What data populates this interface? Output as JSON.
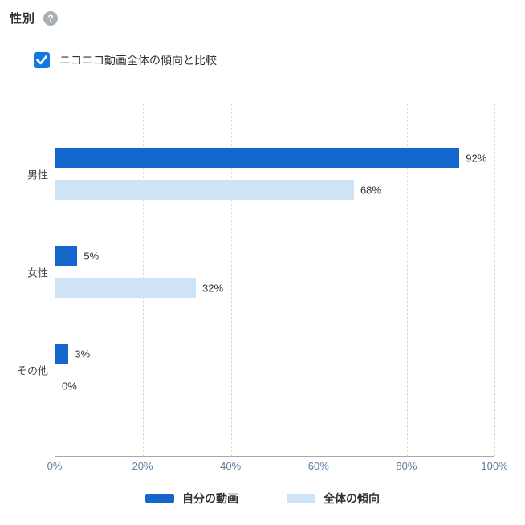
{
  "header": {
    "title": "性別",
    "help_icon_glyph": "?"
  },
  "compare": {
    "label": "ニコニコ動画全体の傾向と比較",
    "checked": true
  },
  "chart_data": {
    "type": "bar",
    "orientation": "horizontal",
    "title": "性別",
    "categories": [
      "男性",
      "女性",
      "その他"
    ],
    "series": [
      {
        "name": "自分の動画",
        "color": "#1266cc",
        "values": [
          92,
          5,
          3
        ]
      },
      {
        "name": "全体の傾向",
        "color": "#cfe3f7",
        "values": [
          68,
          32,
          0
        ]
      }
    ],
    "value_suffix": "%",
    "x_ticks": [
      {
        "label": "0%",
        "value": 0
      },
      {
        "label": "20%",
        "value": 20
      },
      {
        "label": "40%",
        "value": 40
      },
      {
        "label": "60%",
        "value": 60
      },
      {
        "label": "80%",
        "value": 80
      },
      {
        "label": "100%",
        "value": 100
      }
    ],
    "xlim": [
      0,
      100
    ],
    "grid": "dashed-vertical",
    "legend_position": "bottom"
  },
  "legend": {
    "items": [
      {
        "label": "自分の動画",
        "color": "#1266cc"
      },
      {
        "label": "全体の傾向",
        "color": "#cfe3f7"
      }
    ]
  },
  "colors": {
    "accent_blue": "#1266cc",
    "light_blue": "#cfe3f7",
    "checkbox_blue": "#0f7ae1",
    "axis_tick_label": "#5b7ca3",
    "help_icon_bg": "#a9afb7"
  }
}
